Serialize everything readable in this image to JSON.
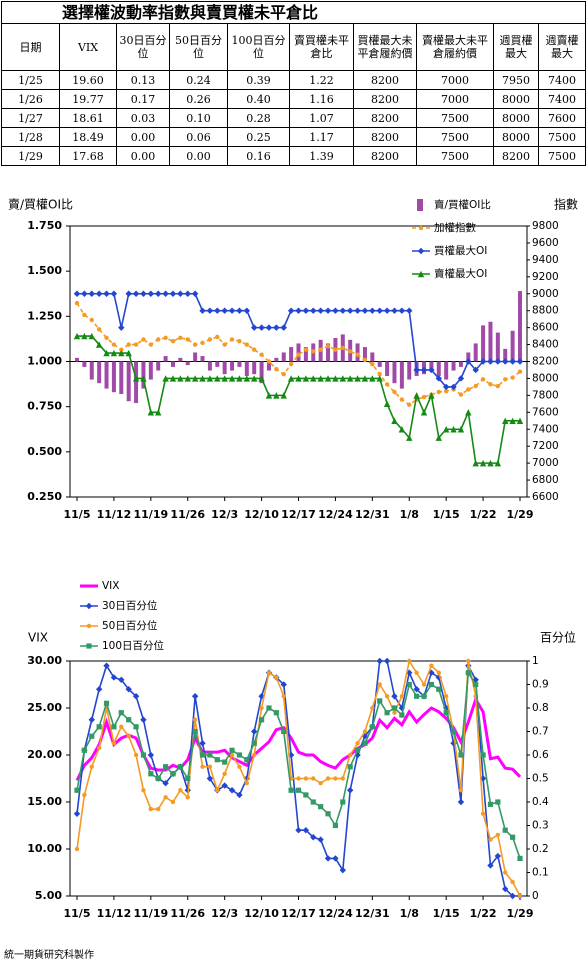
{
  "table": {
    "title": "選擇權波動率指數與賣買權未平倉比",
    "header": [
      "日期",
      "VIX",
      "30日百分位",
      "50日百分位",
      "100日百分位",
      "賣買權未平倉比",
      "買權最大未平倉履約價",
      "賣權最大未平倉履約價",
      "週買權最大",
      "週賣權最大"
    ],
    "rows": [
      [
        "1/25",
        "19.60",
        "0.13",
        "0.24",
        "0.39",
        "1.22",
        "8200",
        "7000",
        "7950",
        "7400"
      ],
      [
        "1/26",
        "19.77",
        "0.17",
        "0.26",
        "0.40",
        "1.16",
        "8200",
        "7000",
        "8000",
        "7400"
      ],
      [
        "1/27",
        "18.61",
        "0.03",
        "0.10",
        "0.28",
        "1.07",
        "8200",
        "7500",
        "8000",
        "7600"
      ],
      [
        "1/28",
        "18.49",
        "0.00",
        "0.06",
        "0.25",
        "1.17",
        "8200",
        "7500",
        "8000",
        "7500"
      ],
      [
        "1/29",
        "17.68",
        "0.00",
        "0.00",
        "0.16",
        "1.39",
        "8200",
        "7500",
        "8200",
        "7500"
      ]
    ]
  },
  "chart_data": [
    {
      "type": "combo",
      "ylabel": "賣/買權OI比",
      "y2label": "指數",
      "legend": "upper right",
      "grid": false,
      "bar_base": 1,
      "categories": [
        "11/5",
        null,
        null,
        null,
        null,
        "11/12",
        null,
        null,
        null,
        null,
        "11/19",
        null,
        null,
        null,
        null,
        "11/26",
        null,
        null,
        null,
        null,
        "12/3",
        null,
        null,
        null,
        null,
        "12/10",
        null,
        null,
        null,
        null,
        "12/17",
        null,
        null,
        null,
        null,
        "12/24",
        null,
        null,
        null,
        null,
        "12/31",
        null,
        null,
        null,
        null,
        "1/8",
        null,
        null,
        null,
        null,
        "1/15",
        null,
        null,
        null,
        null,
        "1/22",
        null,
        null,
        null,
        null,
        "1/29"
      ],
      "ylim": [
        0.25,
        1.75
      ],
      "yticks": [
        {
          "value": 0.25,
          "label": "0.250"
        },
        {
          "value": 0.5,
          "label": "0.500"
        },
        {
          "value": 0.75,
          "label": "0.750"
        },
        {
          "value": 1,
          "label": "1.000"
        },
        {
          "value": 1.25,
          "label": "1.250"
        },
        {
          "value": 1.5,
          "label": "1.500"
        },
        {
          "value": 1.75,
          "label": "1.750"
        }
      ],
      "y2lim": [
        6600,
        9800
      ],
      "y2ticks": [
        6600,
        6800,
        7000,
        7200,
        7400,
        7600,
        7800,
        8000,
        8200,
        8400,
        8600,
        8800,
        9000,
        9200,
        9400,
        9600,
        9800
      ],
      "series": [
        {
          "name": "賣/買權OI比",
          "type": "bar",
          "color": "#a04aa8",
          "values": [
            1.02,
            0.97,
            0.9,
            0.88,
            0.85,
            0.83,
            0.82,
            0.78,
            0.77,
            0.85,
            0.9,
            0.95,
            1.03,
            0.97,
            1.02,
            0.98,
            1.05,
            1.03,
            0.95,
            0.97,
            0.93,
            0.95,
            0.97,
            0.92,
            0.93,
            0.88,
            0.95,
            1.02,
            1.05,
            1.08,
            1.1,
            1.08,
            1.1,
            1.12,
            1.1,
            1.13,
            1.15,
            1.12,
            1.1,
            1.08,
            1.05,
            0.97,
            0.92,
            0.88,
            0.85,
            0.9,
            0.92,
            0.93,
            0.95,
            0.92,
            0.9,
            0.95,
            0.97,
            1.05,
            1.1,
            1.2,
            1.22,
            1.16,
            1.07,
            1.17,
            1.39
          ]
        },
        {
          "name": "加權指數",
          "type": "line",
          "axis": "y2",
          "color": "#f59a23",
          "dash": true,
          "marker": "circle",
          "values": [
            8890,
            8750,
            8690,
            8580,
            8480,
            8400,
            8340,
            8400,
            8400,
            8460,
            8400,
            8460,
            8480,
            8440,
            8480,
            8460,
            8400,
            8420,
            8460,
            8490,
            8400,
            8460,
            8440,
            8400,
            8340,
            8280,
            8200,
            8110,
            8050,
            8170,
            8280,
            8340,
            8320,
            8340,
            8380,
            8340,
            8360,
            8320,
            8280,
            8220,
            8170,
            8050,
            7930,
            7840,
            7750,
            7690,
            7750,
            7780,
            7810,
            7840,
            7850,
            7870,
            7810,
            7870,
            7910,
            7990,
            7930,
            7910,
            7990,
            8010,
            8080
          ]
        },
        {
          "name": "買權最大OI",
          "type": "line",
          "axis": "y2",
          "color": "#2346d0",
          "marker": "diamond",
          "values": [
            9000,
            9000,
            9000,
            9000,
            9000,
            9000,
            8600,
            9000,
            9000,
            9000,
            9000,
            9000,
            9000,
            9000,
            9000,
            9000,
            9000,
            8800,
            8800,
            8800,
            8800,
            8800,
            8800,
            8800,
            8600,
            8600,
            8600,
            8600,
            8600,
            8800,
            8800,
            8800,
            8800,
            8800,
            8800,
            8800,
            8800,
            8800,
            8800,
            8800,
            8800,
            8800,
            8800,
            8800,
            8800,
            8800,
            8100,
            8100,
            8100,
            8000,
            7900,
            7900,
            8000,
            8200,
            8100,
            8200,
            8200,
            8200,
            8200,
            8200,
            8200
          ]
        },
        {
          "name": "賣權最大OI",
          "type": "line",
          "axis": "y2",
          "color": "#138a13",
          "marker": "triangle",
          "values": [
            8500,
            8500,
            8500,
            8400,
            8300,
            8300,
            8300,
            8300,
            8000,
            8000,
            7600,
            7600,
            8000,
            8000,
            8000,
            8000,
            8000,
            8000,
            8000,
            8000,
            8000,
            8000,
            8000,
            8000,
            8000,
            8000,
            7800,
            7800,
            7800,
            8000,
            8000,
            8000,
            8000,
            8000,
            8000,
            8000,
            8000,
            8000,
            8000,
            8000,
            8000,
            8000,
            7700,
            7500,
            7400,
            7300,
            7800,
            7600,
            7800,
            7300,
            7400,
            7400,
            7400,
            7600,
            7000,
            7000,
            7000,
            7000,
            7500,
            7500,
            7500
          ]
        }
      ]
    },
    {
      "type": "line",
      "ylabel": "VIX",
      "y2label": "百分位",
      "legend": "upper left",
      "grid": false,
      "categories": [
        "11/5",
        null,
        null,
        null,
        null,
        "11/12",
        null,
        null,
        null,
        null,
        "11/19",
        null,
        null,
        null,
        null,
        "11/26",
        null,
        null,
        null,
        null,
        "12/3",
        null,
        null,
        null,
        null,
        "12/10",
        null,
        null,
        null,
        null,
        "12/17",
        null,
        null,
        null,
        null,
        "12/24",
        null,
        null,
        null,
        null,
        "12/31",
        null,
        null,
        null,
        null,
        "1/8",
        null,
        null,
        null,
        null,
        "1/15",
        null,
        null,
        null,
        null,
        "1/22",
        null,
        null,
        null,
        null,
        "1/29"
      ],
      "ylim": [
        5,
        30
      ],
      "yticks": [
        {
          "value": 5,
          "label": "5.00"
        },
        {
          "value": 10,
          "label": "10.00"
        },
        {
          "value": 15,
          "label": "15.00"
        },
        {
          "value": 20,
          "label": "20.00"
        },
        {
          "value": 25,
          "label": "25.00"
        },
        {
          "value": 30,
          "label": "30.00"
        }
      ],
      "y2lim": [
        0,
        1
      ],
      "y2ticks": [
        0,
        0.1,
        0.2,
        0.3,
        0.4,
        0.5,
        0.6,
        0.7,
        0.8,
        0.9,
        1
      ],
      "series": [
        {
          "name": "VIX",
          "color": "#ff00ff",
          "width": 3,
          "values": [
            17.3,
            18.9,
            19.7,
            21.1,
            23.5,
            21.1,
            21.8,
            22.1,
            21.8,
            20.0,
            18.6,
            18.4,
            18.4,
            18.9,
            18.6,
            19.5,
            21.8,
            20.3,
            20.3,
            20.3,
            20.5,
            19.7,
            19.3,
            18.9,
            20.0,
            20.7,
            21.4,
            22.7,
            22.9,
            21.8,
            20.3,
            20.0,
            20.0,
            19.3,
            18.9,
            18.6,
            19.5,
            20.0,
            20.7,
            21.1,
            21.8,
            23.7,
            22.9,
            23.9,
            23.2,
            24.6,
            23.5,
            24.3,
            25.0,
            24.6,
            23.9,
            22.9,
            21.4,
            23.5,
            25.9,
            24.6,
            19.6,
            19.77,
            18.61,
            18.49,
            17.68
          ]
        },
        {
          "name": "30日百分位",
          "axis": "y2",
          "color": "#2346d0",
          "marker": "diamond",
          "values": [
            0.35,
            0.62,
            0.75,
            0.88,
            0.98,
            0.93,
            0.92,
            0.88,
            0.85,
            0.75,
            0.6,
            0.5,
            0.48,
            0.52,
            0.55,
            0.45,
            0.85,
            0.65,
            0.5,
            0.45,
            0.47,
            0.45,
            0.43,
            0.5,
            0.7,
            0.85,
            0.95,
            0.93,
            0.9,
            0.6,
            0.28,
            0.28,
            0.25,
            0.24,
            0.16,
            0.16,
            0.11,
            0.45,
            0.6,
            0.68,
            0.72,
            1.0,
            1.0,
            0.85,
            0.8,
            0.95,
            0.88,
            0.85,
            0.95,
            0.93,
            0.8,
            0.65,
            0.4,
            0.98,
            0.92,
            0.5,
            0.13,
            0.17,
            0.03,
            0.0,
            0.0
          ]
        },
        {
          "name": "50日百分位",
          "axis": "y2",
          "color": "#f59a23",
          "marker": "circle",
          "values": [
            0.2,
            0.43,
            0.55,
            0.63,
            0.8,
            0.65,
            0.72,
            0.68,
            0.6,
            0.45,
            0.37,
            0.37,
            0.42,
            0.4,
            0.45,
            0.42,
            0.75,
            0.55,
            0.55,
            0.45,
            0.52,
            0.6,
            0.55,
            0.48,
            0.6,
            0.8,
            0.95,
            0.93,
            0.85,
            0.5,
            0.5,
            0.5,
            0.5,
            0.48,
            0.5,
            0.5,
            0.5,
            0.6,
            0.65,
            0.7,
            0.8,
            0.9,
            0.85,
            0.78,
            0.85,
            1.0,
            0.95,
            0.9,
            0.98,
            0.95,
            0.85,
            0.7,
            0.45,
            1.0,
            0.85,
            0.35,
            0.24,
            0.26,
            0.1,
            0.06,
            0.0
          ]
        },
        {
          "name": "100日百分位",
          "axis": "y2",
          "color": "#339966",
          "marker": "square",
          "values": [
            0.45,
            0.62,
            0.68,
            0.72,
            0.82,
            0.72,
            0.78,
            0.75,
            0.72,
            0.6,
            0.52,
            0.5,
            0.55,
            0.52,
            0.55,
            0.5,
            0.7,
            0.6,
            0.6,
            0.58,
            0.57,
            0.62,
            0.6,
            0.58,
            0.65,
            0.75,
            0.8,
            0.78,
            0.7,
            0.45,
            0.45,
            0.43,
            0.4,
            0.38,
            0.35,
            0.3,
            0.4,
            0.55,
            0.62,
            0.65,
            0.72,
            0.83,
            0.78,
            0.8,
            0.77,
            0.9,
            0.85,
            0.85,
            0.9,
            0.88,
            0.78,
            0.7,
            0.6,
            0.95,
            0.9,
            0.6,
            0.39,
            0.4,
            0.28,
            0.25,
            0.16
          ]
        }
      ]
    }
  ],
  "footer": "統一期貨研究科製作"
}
